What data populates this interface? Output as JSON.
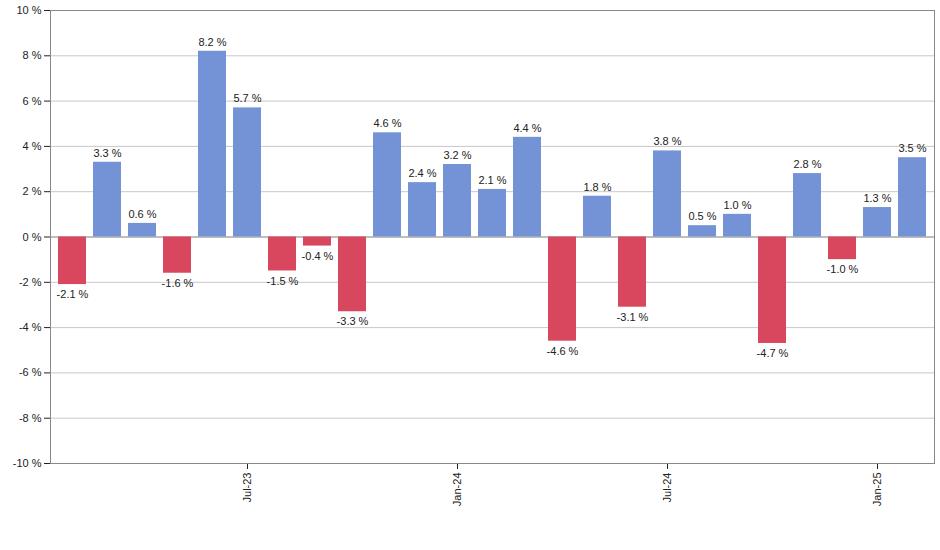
{
  "chart_data": {
    "type": "bar",
    "categories": [
      null,
      null,
      null,
      null,
      null,
      "Jul-23",
      null,
      null,
      null,
      null,
      null,
      "Jan-24",
      null,
      null,
      null,
      null,
      null,
      "Jul-24",
      null,
      null,
      null,
      null,
      null,
      "Jan-25",
      null
    ],
    "values": [
      -2.1,
      3.3,
      0.6,
      -1.6,
      8.2,
      5.7,
      -1.5,
      -0.4,
      -3.3,
      4.6,
      2.4,
      3.2,
      2.1,
      4.4,
      -4.6,
      1.8,
      -3.1,
      3.8,
      0.5,
      1.0,
      -4.7,
      2.8,
      -1.0,
      1.3,
      3.5
    ],
    "value_labels": [
      "-2.1 %",
      "3.3 %",
      "0.6 %",
      "-1.6 %",
      "8.2 %",
      "5.7 %",
      "-1.5 %",
      "-0.4 %",
      "-3.3 %",
      "4.6 %",
      "2.4 %",
      "3.2 %",
      "2.1 %",
      "4.4 %",
      "-4.6 %",
      "1.8 %",
      "-3.1 %",
      "3.8 %",
      "0.5 %",
      "1.0 %",
      "-4.7 %",
      "2.8 %",
      "-1.0 %",
      "1.3 %",
      "3.5 %"
    ],
    "colors": [
      "#d9475f",
      "#7393d6",
      "#7393d6",
      "#d9475f",
      "#7393d6",
      "#7393d6",
      "#d9475f",
      "#d9475f",
      "#d9475f",
      "#7393d6",
      "#7393d6",
      "#7393d6",
      "#7393d6",
      "#7393d6",
      "#d9475f",
      "#7393d6",
      "#d9475f",
      "#7393d6",
      "#7393d6",
      "#7393d6",
      "#d9475f",
      "#7393d6",
      "#d9475f",
      "#7393d6",
      "#7393d6"
    ],
    "ylim": [
      -10,
      10
    ],
    "yticks": [
      {
        "value": -10,
        "label": "-10 %"
      },
      {
        "value": -8,
        "label": "-8 %"
      },
      {
        "value": -6,
        "label": "-6 %"
      },
      {
        "value": -4,
        "label": "-4 %"
      },
      {
        "value": -2,
        "label": "-2 %"
      },
      {
        "value": 0,
        "label": "0 %"
      },
      {
        "value": 2,
        "label": "2 %"
      },
      {
        "value": 4,
        "label": "4 %"
      },
      {
        "value": 6,
        "label": "6 %"
      },
      {
        "value": 8,
        "label": "8 %"
      },
      {
        "value": 10,
        "label": "10 %"
      }
    ],
    "grid": true,
    "data_labels": true
  }
}
